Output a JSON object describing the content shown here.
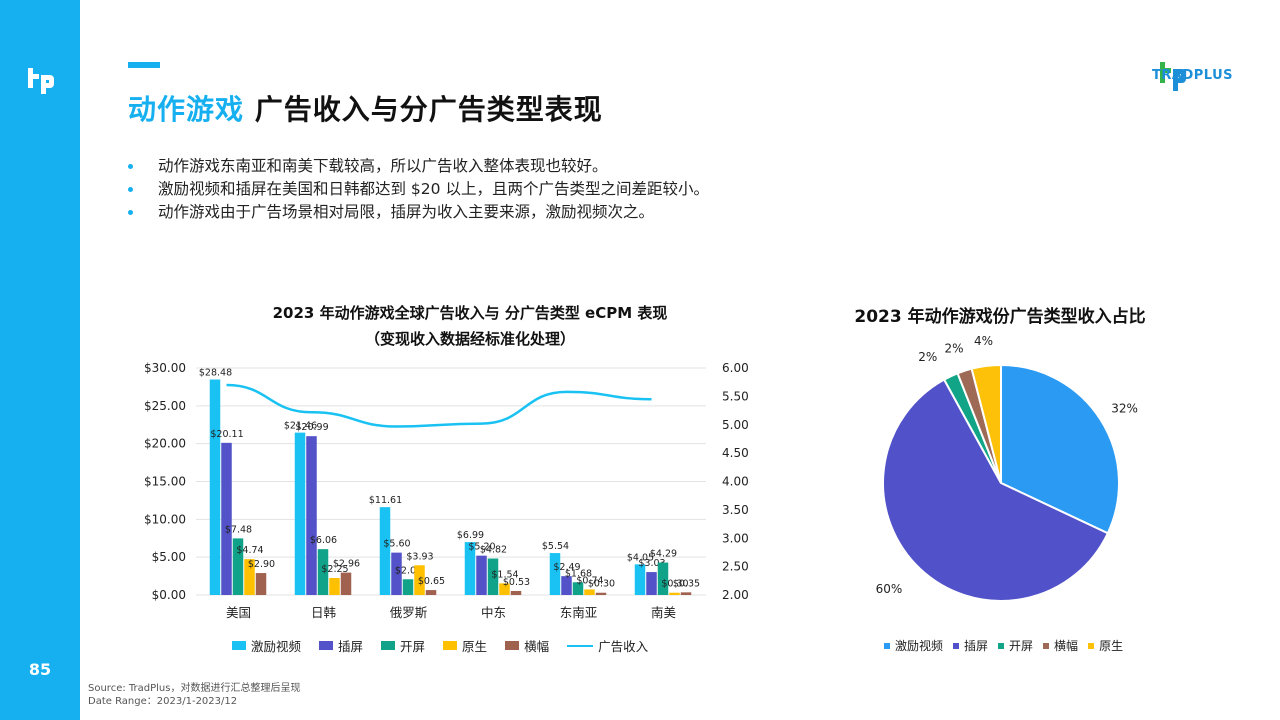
{
  "page": {
    "number": "85",
    "title_highlight": "动作游戏",
    "title_rest": "广告收入与分广告类型表现",
    "brand": "TRADPLUS"
  },
  "bullets": [
    "动作游戏东南亚和南美下载较高，所以广告收入整体表现也较好。",
    "激励视频和插屏在美国和日韩都达到 $20 以上，且两个广告类型之间差距较小。",
    "动作游戏由于广告场景相对局限，插屏为收入主要来源，激励视频次之。"
  ],
  "source": {
    "line1": "Source: TradPlus，对数据进行汇总整理后呈现",
    "line2": "Date Range：2023/1-2023/12"
  },
  "colors": {
    "accent": "#16b0f0",
    "激励视频": "#19c2f2",
    "插屏": "#5452c8",
    "开屏": "#10a38a",
    "原生": "#ffc000",
    "横幅": "#a0614e",
    "广告收入": "#19c2f2",
    "pie_激励视频": "#2b9af3",
    "pie_插屏": "#5152c9",
    "pie_开屏": "#11a487",
    "pie_横幅": "#9e6a56",
    "pie_原生": "#fdc10a"
  },
  "chart_data": [
    {
      "type": "bar",
      "title_line1": "2023 年动作游戏全球广告收入与 分广告类型 eCPM 表现",
      "title_line2": "（变现收入数据经标准化处理）",
      "categories": [
        "美国",
        "日韩",
        "俄罗斯",
        "中东",
        "东南亚",
        "南美"
      ],
      "series": [
        {
          "name": "激励视频",
          "values": [
            28.48,
            21.46,
            11.61,
            6.99,
            5.54,
            4.05
          ],
          "labels": [
            "$28.48",
            "$21.46",
            "$11.61",
            "$6.99",
            "$5.54",
            "$4.05"
          ]
        },
        {
          "name": "插屏",
          "values": [
            20.11,
            20.99,
            5.6,
            5.2,
            2.49,
            3.03
          ],
          "labels": [
            "$20.11",
            "$20.99",
            "$5.60",
            "$5.20",
            "$2.49",
            "$3.03"
          ]
        },
        {
          "name": "开屏",
          "values": [
            7.48,
            6.06,
            2.08,
            4.82,
            1.68,
            4.29
          ],
          "labels": [
            "$7.48",
            "$6.06",
            "$2.08",
            "$4.82",
            "$1.68",
            "$4.29"
          ]
        },
        {
          "name": "原生",
          "values": [
            4.74,
            2.25,
            3.93,
            1.54,
            0.74,
            0.3
          ],
          "labels": [
            "$4.74",
            "$2.25",
            "$3.93",
            "$1.54",
            "$0.74",
            "$0.30"
          ]
        },
        {
          "name": "横幅",
          "values": [
            2.9,
            2.96,
            0.65,
            0.53,
            0.3,
            0.35
          ],
          "labels": [
            "$2.90",
            "$2.96",
            "$0.65",
            "$0.53",
            "$0.30",
            "$0.35"
          ]
        }
      ],
      "line": {
        "name": "广告收入",
        "values": [
          5.7,
          5.22,
          4.97,
          5.02,
          5.58,
          5.45
        ]
      },
      "ylim_left": [
        0,
        30
      ],
      "yticks_left": [
        "$0.00",
        "$5.00",
        "$10.00",
        "$15.00",
        "$20.00",
        "$25.00",
        "$30.00"
      ],
      "ylim_right": [
        2,
        6
      ],
      "yticks_right": [
        "2.00",
        "2.50",
        "3.00",
        "3.50",
        "4.00",
        "4.50",
        "5.00",
        "5.50",
        "6.00"
      ],
      "legend": [
        "激励视频",
        "插屏",
        "开屏",
        "原生",
        "横幅",
        "广告收入"
      ]
    },
    {
      "type": "pie",
      "title": "2023 年动作游戏份广告类型收入占比",
      "slices": [
        {
          "name": "激励视频",
          "value": 32,
          "label": "32%"
        },
        {
          "name": "插屏",
          "value": 60,
          "label": "60%"
        },
        {
          "name": "开屏",
          "value": 2,
          "label": "2%"
        },
        {
          "name": "横幅",
          "value": 2,
          "label": "2%"
        },
        {
          "name": "原生",
          "value": 4,
          "label": "4%"
        }
      ],
      "legend": [
        "激励视频",
        "插屏",
        "开屏",
        "横幅",
        "原生"
      ]
    }
  ]
}
